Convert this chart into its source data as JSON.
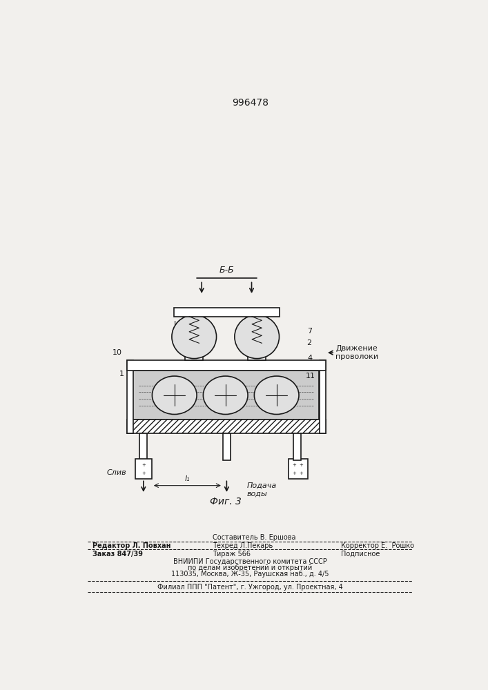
{
  "patent_number": "996478",
  "bg_color": "#f2f0ed",
  "line_color": "#1a1a1a",
  "fig_label": "Фиг. 3",
  "section_label": "Б-Б",
  "label_dvizhenie": "Движение\nпроволоки",
  "label_sliv": "Слив",
  "label_podacha": "Подача\nводы",
  "label_l1": "l₁"
}
